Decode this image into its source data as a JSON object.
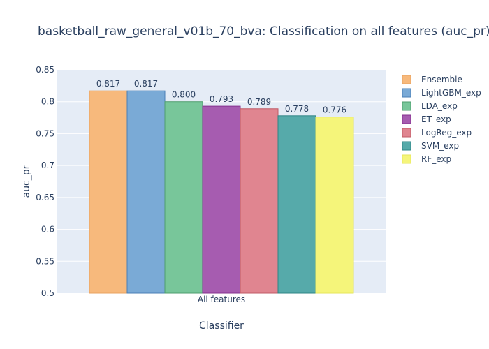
{
  "chart_data": {
    "type": "bar",
    "title": "basketball_raw_general_v01b_70_bva: Classification on all features (auc_pr)",
    "xlabel": "Classifier",
    "ylabel": "auc_pr",
    "categories": [
      "All features"
    ],
    "ylim": [
      0.5,
      0.85
    ],
    "yticks": [
      0.5,
      0.55,
      0.6,
      0.65,
      0.7,
      0.75,
      0.8,
      0.85
    ],
    "ytick_labels": [
      "0.5",
      "0.55",
      "0.6",
      "0.65",
      "0.7",
      "0.75",
      "0.8",
      "0.85"
    ],
    "grid": true,
    "legend_position": "right",
    "series": [
      {
        "name": "Ensemble",
        "values": [
          0.817
        ],
        "label": "0.817",
        "color": "#f7b97c",
        "edge": "#e8a360"
      },
      {
        "name": "LightGBM_exp",
        "values": [
          0.817
        ],
        "label": "0.817",
        "color": "#7aaad6",
        "edge": "#4a7fb5"
      },
      {
        "name": "LDA_exp",
        "values": [
          0.8
        ],
        "label": "0.800",
        "color": "#78c69a",
        "edge": "#4e9e6e"
      },
      {
        "name": "ET_exp",
        "values": [
          0.793
        ],
        "label": "0.793",
        "color": "#a65cb0",
        "edge": "#86318f"
      },
      {
        "name": "LogReg_exp",
        "values": [
          0.789
        ],
        "label": "0.789",
        "color": "#e08590",
        "edge": "#c05a66"
      },
      {
        "name": "SVM_exp",
        "values": [
          0.778
        ],
        "label": "0.778",
        "color": "#56aaaa",
        "edge": "#2e8585"
      },
      {
        "name": "RF_exp",
        "values": [
          0.776
        ],
        "label": "0.776",
        "color": "#f5f57a",
        "edge": "#e6e65a"
      }
    ]
  }
}
